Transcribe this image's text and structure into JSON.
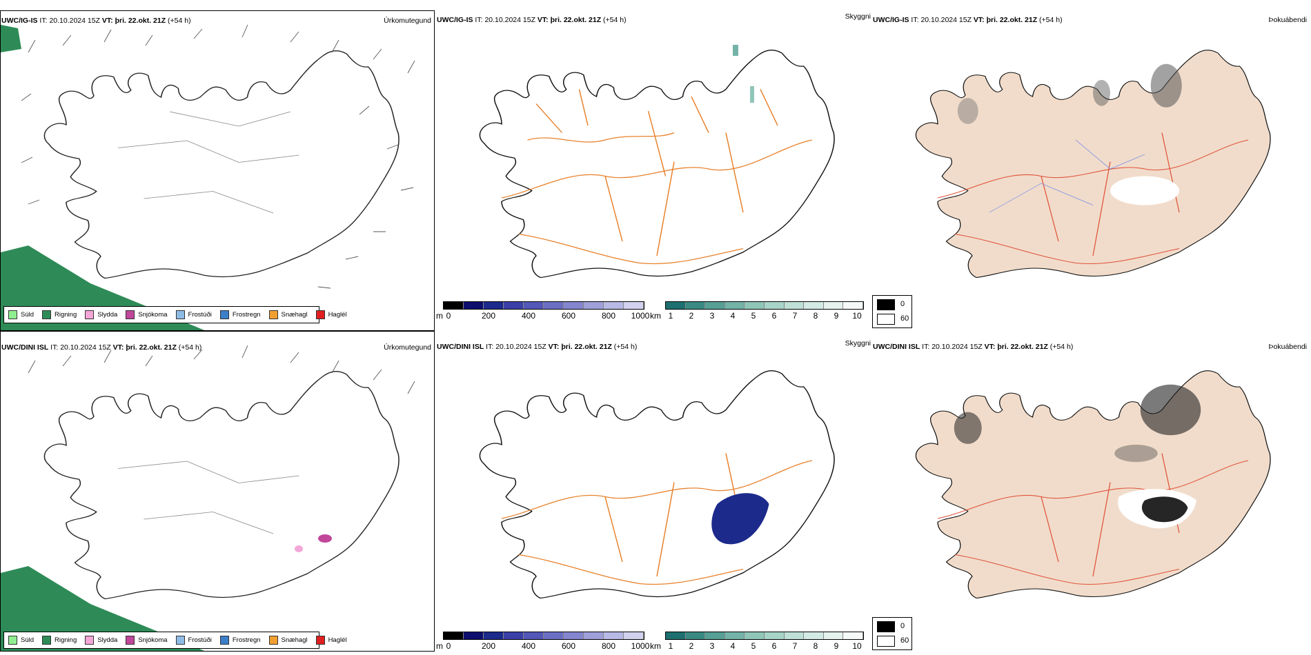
{
  "rows": [
    {
      "model": "UWC/IG-IS",
      "it_label": "IT:",
      "it_value": "20.10.2024 15Z",
      "vt_label": "VT:",
      "vt_value": "þri. 22.okt. 21Z",
      "lead": "(+54 h)"
    },
    {
      "model": "UWC/DINI ISL",
      "it_label": "IT:",
      "it_value": "20.10.2024 15Z",
      "vt_label": "VT:",
      "vt_value": "þri. 22.okt. 21Z",
      "lead": "(+54 h)"
    }
  ],
  "panel_titles": {
    "precip": "Úrkomutegund",
    "visibility": "Skyggni",
    "fog": "Þokuábendi"
  },
  "precip_legend": [
    {
      "label": "Súld",
      "color": "#90ee90"
    },
    {
      "label": "Rigning",
      "color": "#2e8b57"
    },
    {
      "label": "Slydda",
      "color": "#f4a6d7"
    },
    {
      "label": "Snjókoma",
      "color": "#c0479a"
    },
    {
      "label": "Frostúði",
      "color": "#8fbce6"
    },
    {
      "label": "Frostregn",
      "color": "#3a7fc8"
    },
    {
      "label": "Snæhagl",
      "color": "#f0a030"
    },
    {
      "label": "Haglél",
      "color": "#e02020"
    }
  ],
  "cloud_base_bar": {
    "unit": "m",
    "ticks": [
      "0",
      "200",
      "400",
      "600",
      "800",
      "1000"
    ],
    "colors": [
      "#000000",
      "#0d0d6e",
      "#1c2a8c",
      "#3a40a8",
      "#5257b8",
      "#6b6fc4",
      "#8486cf",
      "#9fa0da",
      "#b8b9e4",
      "#d2d2ee"
    ]
  },
  "visibility_bar": {
    "unit": "km",
    "ticks": [
      "1",
      "2",
      "3",
      "4",
      "5",
      "6",
      "7",
      "8",
      "9",
      "10"
    ],
    "colors": [
      "#1e7070",
      "#3a8a84",
      "#56a096",
      "#74b4a8",
      "#90c6b8",
      "#a8d4c8",
      "#bfe0d6",
      "#d4eae4",
      "#e6f2ee",
      "#f5faf8"
    ]
  },
  "fog_legend": [
    {
      "label": "0",
      "color": "#000000"
    },
    {
      "label": "60",
      "color": "#ffffff"
    }
  ],
  "colors": {
    "ocean_green": "#2e8b57",
    "roads": "#e8822c",
    "fog_land": "#f1dccb",
    "fog_roads": "#e0533a",
    "rivers": "#7a90e8"
  }
}
